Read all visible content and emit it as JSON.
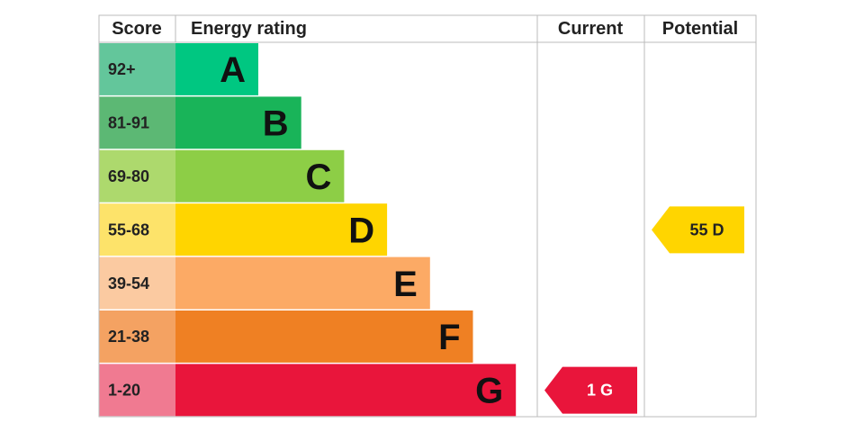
{
  "header": {
    "score": "Score",
    "rating": "Energy rating",
    "current": "Current",
    "potential": "Potential"
  },
  "rows": [
    {
      "score": "92+",
      "letter": "A",
      "color": "#00c781",
      "score_color": "#63c69b"
    },
    {
      "score": "81-91",
      "letter": "B",
      "color": "#19b459",
      "score_color": "#5cb874"
    },
    {
      "score": "69-80",
      "letter": "C",
      "color": "#8dce46",
      "score_color": "#add96d"
    },
    {
      "score": "55-68",
      "letter": "D",
      "color": "#ffd500",
      "score_color": "#fde36a"
    },
    {
      "score": "39-54",
      "letter": "E",
      "color": "#fcaa65",
      "score_color": "#fbcaa1"
    },
    {
      "score": "21-38",
      "letter": "F",
      "color": "#ef8023",
      "score_color": "#f4a262"
    },
    {
      "score": "1-20",
      "letter": "G",
      "color": "#e9153b",
      "score_color": "#f07a91"
    }
  ],
  "current": {
    "score": 1,
    "rating": "G",
    "color": "#e9153b",
    "text_color": "#ffffff"
  },
  "potential": {
    "score": 55,
    "rating": "D",
    "color": "#ffd500",
    "text_color": "#222222"
  }
}
